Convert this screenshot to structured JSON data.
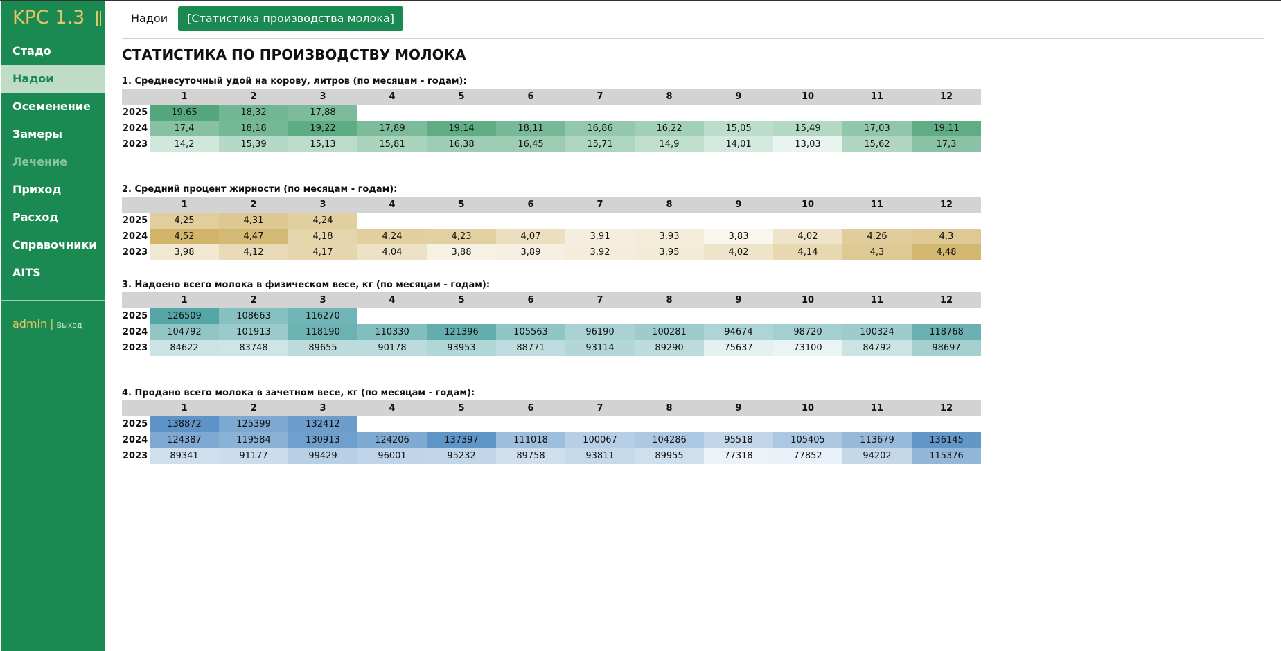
{
  "app": {
    "title": "KPC 1.3"
  },
  "sidebar": {
    "items": [
      {
        "label": "Стадо",
        "state": "normal"
      },
      {
        "label": "Надои",
        "state": "active"
      },
      {
        "label": "Осеменение",
        "state": "normal"
      },
      {
        "label": "Замеры",
        "state": "normal"
      },
      {
        "label": "Лечение",
        "state": "disabled"
      },
      {
        "label": "Приход",
        "state": "normal"
      },
      {
        "label": "Расход",
        "state": "normal"
      },
      {
        "label": "Справочники",
        "state": "normal"
      },
      {
        "label": "AITS",
        "state": "normal"
      }
    ],
    "user": {
      "name": "admin",
      "separator": "|",
      "logout": "Выход"
    }
  },
  "tabs": [
    {
      "label": "Надои",
      "active": false
    },
    {
      "label": "[Статистика производства молока]",
      "active": true
    }
  ],
  "page_title": "СТАТИСТИКА ПО ПРОИЗВОДСТВУ МОЛОКА",
  "colors": {
    "sidebar_bg": "#1b8a52",
    "brand": "#e8c465",
    "header_bg": "#d3d3d3",
    "heat_green": "#54a77c",
    "heat_gold": "#d1b46a",
    "heat_teal": "#55a6a7",
    "heat_blue": "#5d93c6"
  },
  "sections": [
    {
      "title": "1. Среднесуточный удой на корову, литров (по месяцам - годам):",
      "heat_color": "heat_green",
      "months": [
        "1",
        "2",
        "3",
        "4",
        "5",
        "6",
        "7",
        "8",
        "9",
        "10",
        "11",
        "12"
      ],
      "rows": [
        {
          "year": "2025",
          "values": [
            "19,65",
            "18,32",
            "17,88"
          ]
        },
        {
          "year": "2024",
          "values": [
            "17,4",
            "18,18",
            "19,22",
            "17,89",
            "19,14",
            "18,11",
            "16,86",
            "16,22",
            "15,05",
            "15,49",
            "17,03",
            "19,11"
          ]
        },
        {
          "year": "2023",
          "values": [
            "14,2",
            "15,39",
            "15,13",
            "15,81",
            "16,38",
            "16,45",
            "15,71",
            "14,9",
            "14,01",
            "13,03",
            "15,62",
            "17,3"
          ]
        }
      ]
    },
    {
      "title": "2. Средний процент жирности (по месяцам - годам):",
      "heat_color": "heat_gold",
      "months": [
        "1",
        "2",
        "3",
        "4",
        "5",
        "6",
        "7",
        "8",
        "9",
        "10",
        "11",
        "12"
      ],
      "rows": [
        {
          "year": "2025",
          "values": [
            "4,25",
            "4,31",
            "4,24"
          ]
        },
        {
          "year": "2024",
          "values": [
            "4,52",
            "4,47",
            "4,18",
            "4,24",
            "4,23",
            "4,07",
            "3,91",
            "3,93",
            "3,83",
            "4,02",
            "4,26",
            "4,3"
          ]
        },
        {
          "year": "2023",
          "values": [
            "3,98",
            "4,12",
            "4,17",
            "4,04",
            "3,88",
            "3,89",
            "3,92",
            "3,95",
            "4,02",
            "4,14",
            "4,3",
            "4,48"
          ]
        }
      ]
    },
    {
      "title": "3. Надоено всего молока в физическом весе, кг (по месяцам - годам):",
      "heat_color": "heat_teal",
      "months": [
        "1",
        "2",
        "3",
        "4",
        "5",
        "6",
        "7",
        "8",
        "9",
        "10",
        "11",
        "12"
      ],
      "rows": [
        {
          "year": "2025",
          "values": [
            "126509",
            "108663",
            "116270"
          ]
        },
        {
          "year": "2024",
          "values": [
            "104792",
            "101913",
            "118190",
            "110330",
            "121396",
            "105563",
            "96190",
            "100281",
            "94674",
            "98720",
            "100324",
            "118768"
          ]
        },
        {
          "year": "2023",
          "values": [
            "84622",
            "83748",
            "89655",
            "90178",
            "93953",
            "88771",
            "93114",
            "89290",
            "75637",
            "73100",
            "84792",
            "98697"
          ]
        }
      ]
    },
    {
      "title": "4. Продано всего молока в зачетном весе, кг (по месяцам - годам):",
      "heat_color": "heat_blue",
      "months": [
        "1",
        "2",
        "3",
        "4",
        "5",
        "6",
        "7",
        "8",
        "9",
        "10",
        "11",
        "12"
      ],
      "rows": [
        {
          "year": "2025",
          "values": [
            "138872",
            "125399",
            "132412"
          ]
        },
        {
          "year": "2024",
          "values": [
            "124387",
            "119584",
            "130913",
            "124206",
            "137397",
            "111018",
            "100067",
            "104286",
            "95518",
            "105405",
            "113679",
            "136145"
          ]
        },
        {
          "year": "2023",
          "values": [
            "89341",
            "91177",
            "99429",
            "96001",
            "95232",
            "89758",
            "93811",
            "89955",
            "77318",
            "77852",
            "94202",
            "115376"
          ]
        }
      ]
    }
  ]
}
